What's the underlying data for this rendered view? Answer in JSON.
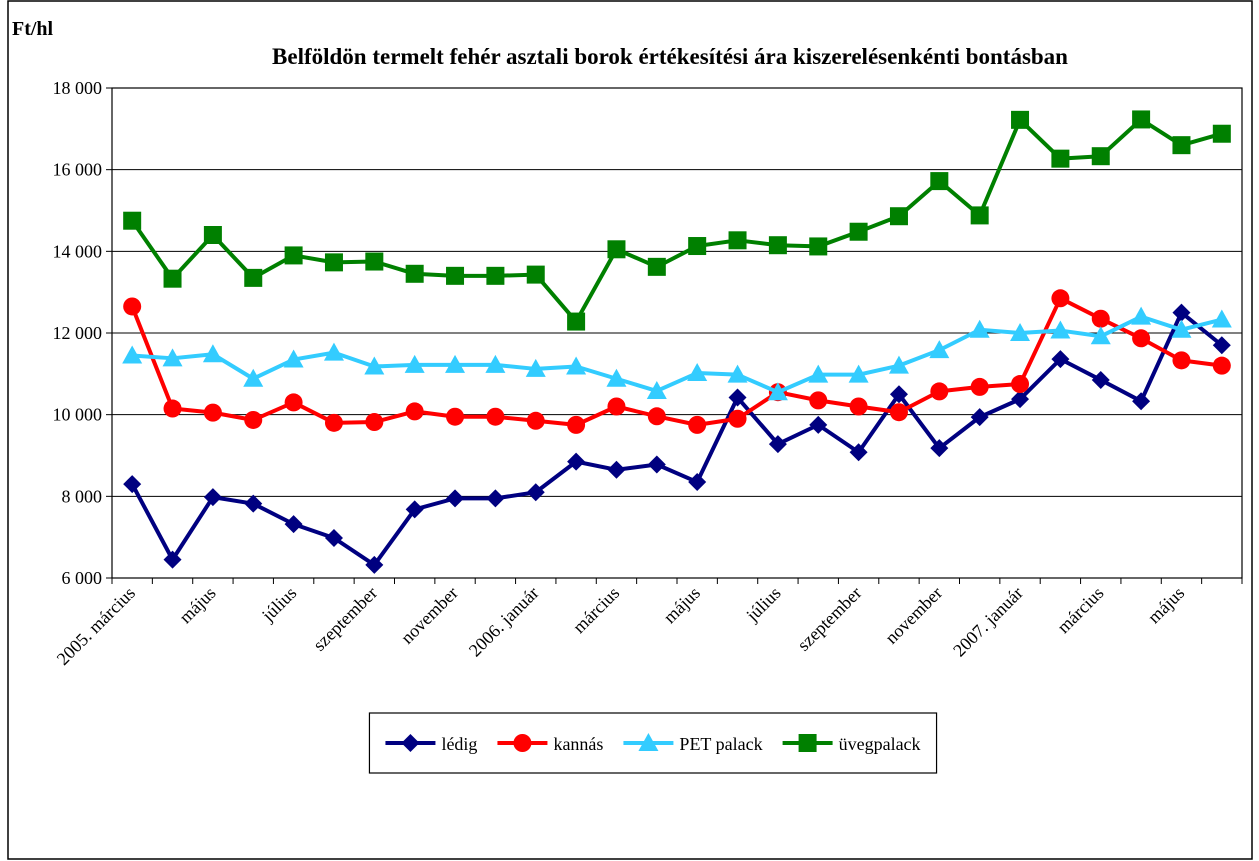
{
  "chart_data": {
    "type": "line",
    "title": "Belföldön termelt fehér asztali borok értékesítési ára kiszerelésenkénti bontásban",
    "y_label": "Ft/hl",
    "categories": [
      "2005. március",
      null,
      "május",
      null,
      "július",
      null,
      "szeptember",
      null,
      "november",
      null,
      "2006. január",
      null,
      "március",
      null,
      "május",
      null,
      "július",
      null,
      "szeptember",
      null,
      "november",
      null,
      "2007. január",
      null,
      "március",
      null,
      "május",
      null
    ],
    "series": [
      {
        "name": "lédig",
        "color": "#000080",
        "marker": "diamond",
        "values": [
          8300,
          6450,
          7980,
          7820,
          7320,
          6980,
          6320,
          7680,
          7950,
          7950,
          8100,
          8850,
          8650,
          8780,
          8350,
          10420,
          9280,
          9750,
          9080,
          10500,
          9180,
          9940,
          10380,
          11360,
          10850,
          10330,
          12500,
          11700
        ]
      },
      {
        "name": "kannás",
        "color": "#ff0000",
        "marker": "circle",
        "values": [
          12650,
          10150,
          10050,
          9870,
          10300,
          9800,
          9820,
          10080,
          9950,
          9950,
          9850,
          9750,
          10200,
          9960,
          9750,
          9900,
          10550,
          10350,
          10200,
          10060,
          10570,
          10680,
          10750,
          12850,
          12350,
          11870,
          11330,
          11200
        ]
      },
      {
        "name": "PET palack",
        "color": "#33ccff",
        "marker": "triangle",
        "values": [
          11450,
          11380,
          11480,
          10880,
          11350,
          11520,
          11180,
          11220,
          11220,
          11220,
          11120,
          11180,
          10880,
          10580,
          11020,
          10980,
          10550,
          10980,
          10980,
          11200,
          11580,
          12080,
          12000,
          12060,
          11920,
          12400,
          12080,
          12330
        ]
      },
      {
        "name": "üvegpalack",
        "color": "#008000",
        "marker": "square",
        "values": [
          14750,
          13330,
          14400,
          13350,
          13900,
          13730,
          13750,
          13450,
          13400,
          13400,
          13430,
          12280,
          14050,
          13620,
          14130,
          14270,
          14150,
          14120,
          14480,
          14860,
          15720,
          14880,
          17220,
          16270,
          16330,
          17230,
          16600,
          16880
        ]
      }
    ],
    "ylim": [
      6000,
      18000
    ],
    "yticks": [
      {
        "value": 6000,
        "label": "6 000"
      },
      {
        "value": 8000,
        "label": "8 000"
      },
      {
        "value": 10000,
        "label": "10 000"
      },
      {
        "value": 12000,
        "label": "12 000"
      },
      {
        "value": 14000,
        "label": "14 000"
      },
      {
        "value": 16000,
        "label": "16 000"
      },
      {
        "value": 18000,
        "label": "18 000"
      }
    ],
    "grid": true,
    "legend": "bottom"
  }
}
